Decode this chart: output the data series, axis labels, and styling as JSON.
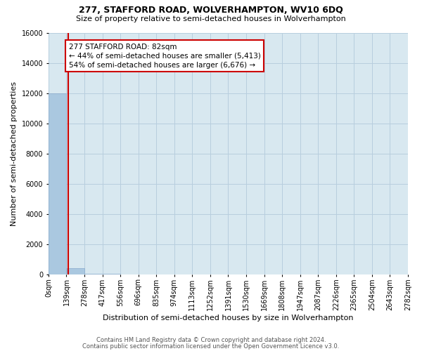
{
  "title": "277, STAFFORD ROAD, WOLVERHAMPTON, WV10 6DQ",
  "subtitle": "Size of property relative to semi-detached houses in Wolverhampton",
  "xlabel": "Distribution of semi-detached houses by size in Wolverhampton",
  "ylabel": "Number of semi-detached properties",
  "footer_line1": "Contains HM Land Registry data © Crown copyright and database right 2024.",
  "footer_line2": "Contains public sector information licensed under the Open Government Licence v3.0.",
  "bar_color": "#aac8e0",
  "bar_edge_color": "#88aacc",
  "grid_color": "#b8cede",
  "background_color": "#d8e8f0",
  "annotation_box_color": "#cc0000",
  "property_line_color": "#cc0000",
  "property_size_bin": 0.59,
  "property_label": "277 STAFFORD ROAD: 82sqm",
  "smaller_pct": 44,
  "smaller_count": 5413,
  "larger_pct": 54,
  "larger_count": 6676,
  "ylim": [
    0,
    16000
  ],
  "yticks": [
    0,
    2000,
    4000,
    6000,
    8000,
    10000,
    12000,
    14000,
    16000
  ],
  "bin_labels": [
    "0sqm",
    "139sqm",
    "278sqm",
    "417sqm",
    "556sqm",
    "696sqm",
    "835sqm",
    "974sqm",
    "1113sqm",
    "1252sqm",
    "1391sqm",
    "1530sqm",
    "1669sqm",
    "1808sqm",
    "1947sqm",
    "2087sqm",
    "2226sqm",
    "2365sqm",
    "2504sqm",
    "2643sqm",
    "2782sqm"
  ],
  "bar_heights": [
    12000,
    390,
    45,
    15,
    8,
    4,
    2,
    1,
    1,
    0,
    0,
    0,
    0,
    0,
    0,
    0,
    0,
    0,
    0,
    0
  ],
  "n_bins": 20,
  "title_fontsize": 9,
  "subtitle_fontsize": 8,
  "ylabel_fontsize": 8,
  "xlabel_fontsize": 8,
  "tick_fontsize": 7,
  "annotation_fontsize": 7.5,
  "footer_fontsize": 6
}
